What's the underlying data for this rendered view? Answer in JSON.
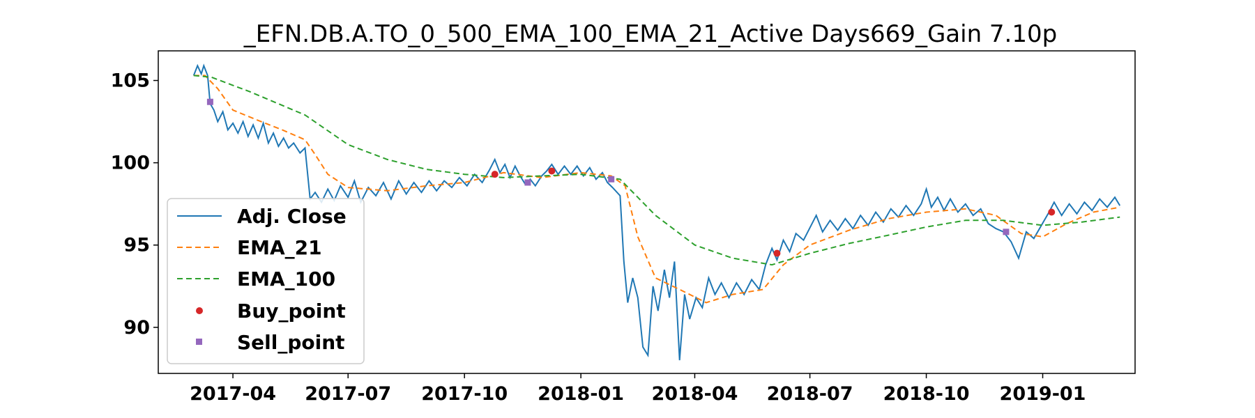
{
  "chart_data": {
    "type": "line",
    "title": "_EFN.DB.A.TO_0_500_EMA_100_EMA_21_Active Days669_Gain   7.10p",
    "xlabel": "",
    "ylabel": "",
    "xlim": [
      "2017-02-01",
      "2019-03-15"
    ],
    "ylim": [
      87.2,
      106.8
    ],
    "y_ticks": [
      90,
      95,
      100,
      105
    ],
    "x_ticks": [
      "2017-04",
      "2017-07",
      "2017-10",
      "2018-01",
      "2018-04",
      "2018-07",
      "2018-10",
      "2019-01"
    ],
    "grid": false,
    "legend_position": "lower-left",
    "series": [
      {
        "name": "Adj. Close",
        "color": "#1f77b4",
        "style": "solid",
        "points": [
          [
            "2017-03-01",
            105.3
          ],
          [
            "2017-03-04",
            105.9
          ],
          [
            "2017-03-07",
            105.4
          ],
          [
            "2017-03-09",
            105.9
          ],
          [
            "2017-03-12",
            105.3
          ],
          [
            "2017-03-14",
            103.6
          ],
          [
            "2017-03-17",
            103.2
          ],
          [
            "2017-03-20",
            102.5
          ],
          [
            "2017-03-24",
            103.1
          ],
          [
            "2017-03-28",
            102.0
          ],
          [
            "2017-04-01",
            102.4
          ],
          [
            "2017-04-05",
            101.8
          ],
          [
            "2017-04-09",
            102.5
          ],
          [
            "2017-04-13",
            101.6
          ],
          [
            "2017-04-17",
            102.3
          ],
          [
            "2017-04-21",
            101.5
          ],
          [
            "2017-04-25",
            102.4
          ],
          [
            "2017-04-29",
            101.2
          ],
          [
            "2017-05-03",
            101.8
          ],
          [
            "2017-05-07",
            101.0
          ],
          [
            "2017-05-11",
            101.5
          ],
          [
            "2017-05-15",
            100.9
          ],
          [
            "2017-05-19",
            101.2
          ],
          [
            "2017-05-24",
            100.6
          ],
          [
            "2017-05-28",
            100.9
          ],
          [
            "2017-06-01",
            97.8
          ],
          [
            "2017-06-05",
            98.2
          ],
          [
            "2017-06-10",
            97.6
          ],
          [
            "2017-06-15",
            98.4
          ],
          [
            "2017-06-20",
            97.7
          ],
          [
            "2017-06-25",
            98.6
          ],
          [
            "2017-07-01",
            97.9
          ],
          [
            "2017-07-06",
            98.9
          ],
          [
            "2017-07-11",
            97.6
          ],
          [
            "2017-07-17",
            98.5
          ],
          [
            "2017-07-23",
            98.0
          ],
          [
            "2017-07-29",
            98.8
          ],
          [
            "2017-08-04",
            97.8
          ],
          [
            "2017-08-10",
            98.9
          ],
          [
            "2017-08-16",
            98.1
          ],
          [
            "2017-08-22",
            98.8
          ],
          [
            "2017-08-28",
            98.2
          ],
          [
            "2017-09-03",
            98.9
          ],
          [
            "2017-09-09",
            98.3
          ],
          [
            "2017-09-15",
            98.9
          ],
          [
            "2017-09-21",
            98.5
          ],
          [
            "2017-09-27",
            99.1
          ],
          [
            "2017-10-03",
            98.6
          ],
          [
            "2017-10-09",
            99.3
          ],
          [
            "2017-10-15",
            98.8
          ],
          [
            "2017-10-21",
            99.6
          ],
          [
            "2017-10-25",
            100.2
          ],
          [
            "2017-10-29",
            99.4
          ],
          [
            "2017-11-02",
            99.9
          ],
          [
            "2017-11-06",
            99.1
          ],
          [
            "2017-11-10",
            99.8
          ],
          [
            "2017-11-14",
            99.2
          ],
          [
            "2017-11-18",
            98.7
          ],
          [
            "2017-11-22",
            99.0
          ],
          [
            "2017-11-26",
            98.6
          ],
          [
            "2017-12-01",
            99.2
          ],
          [
            "2017-12-05",
            99.5
          ],
          [
            "2017-12-09",
            99.9
          ],
          [
            "2017-12-14",
            99.3
          ],
          [
            "2017-12-19",
            99.8
          ],
          [
            "2017-12-24",
            99.3
          ],
          [
            "2017-12-29",
            99.8
          ],
          [
            "2018-01-03",
            99.2
          ],
          [
            "2018-01-08",
            99.7
          ],
          [
            "2018-01-13",
            99.0
          ],
          [
            "2018-01-18",
            99.4
          ],
          [
            "2018-01-22",
            98.8
          ],
          [
            "2018-01-26",
            98.5
          ],
          [
            "2018-02-01",
            98.0
          ],
          [
            "2018-02-04",
            94.0
          ],
          [
            "2018-02-07",
            91.5
          ],
          [
            "2018-02-11",
            93.0
          ],
          [
            "2018-02-15",
            91.8
          ],
          [
            "2018-02-19",
            88.8
          ],
          [
            "2018-02-23",
            88.3
          ],
          [
            "2018-02-27",
            92.5
          ],
          [
            "2018-03-03",
            91.0
          ],
          [
            "2018-03-08",
            93.5
          ],
          [
            "2018-03-12",
            91.8
          ],
          [
            "2018-03-16",
            94.0
          ],
          [
            "2018-03-20",
            88.0
          ],
          [
            "2018-03-24",
            92.0
          ],
          [
            "2018-03-28",
            90.5
          ],
          [
            "2018-04-02",
            91.8
          ],
          [
            "2018-04-07",
            91.2
          ],
          [
            "2018-04-12",
            93.0
          ],
          [
            "2018-04-17",
            92.0
          ],
          [
            "2018-04-22",
            92.7
          ],
          [
            "2018-04-28",
            91.8
          ],
          [
            "2018-05-04",
            92.7
          ],
          [
            "2018-05-10",
            92.0
          ],
          [
            "2018-05-16",
            92.9
          ],
          [
            "2018-05-22",
            92.3
          ],
          [
            "2018-05-27",
            93.8
          ],
          [
            "2018-06-01",
            94.8
          ],
          [
            "2018-06-05",
            94.1
          ],
          [
            "2018-06-10",
            95.3
          ],
          [
            "2018-06-15",
            94.6
          ],
          [
            "2018-06-20",
            95.7
          ],
          [
            "2018-06-26",
            95.3
          ],
          [
            "2018-07-02",
            96.2
          ],
          [
            "2018-07-06",
            96.8
          ],
          [
            "2018-07-11",
            95.8
          ],
          [
            "2018-07-17",
            96.5
          ],
          [
            "2018-07-23",
            95.9
          ],
          [
            "2018-07-29",
            96.6
          ],
          [
            "2018-08-04",
            96.0
          ],
          [
            "2018-08-10",
            96.8
          ],
          [
            "2018-08-16",
            96.2
          ],
          [
            "2018-08-22",
            97.0
          ],
          [
            "2018-08-28",
            96.4
          ],
          [
            "2018-09-03",
            97.2
          ],
          [
            "2018-09-09",
            96.7
          ],
          [
            "2018-09-15",
            97.4
          ],
          [
            "2018-09-21",
            96.8
          ],
          [
            "2018-09-27",
            97.5
          ],
          [
            "2018-10-01",
            98.4
          ],
          [
            "2018-10-05",
            97.3
          ],
          [
            "2018-10-10",
            97.9
          ],
          [
            "2018-10-15",
            97.1
          ],
          [
            "2018-10-20",
            97.8
          ],
          [
            "2018-10-26",
            97.0
          ],
          [
            "2018-11-01",
            97.5
          ],
          [
            "2018-11-07",
            96.8
          ],
          [
            "2018-11-13",
            97.2
          ],
          [
            "2018-11-19",
            96.3
          ],
          [
            "2018-11-25",
            96.0
          ],
          [
            "2018-12-01",
            95.8
          ],
          [
            "2018-12-07",
            95.2
          ],
          [
            "2018-12-13",
            94.2
          ],
          [
            "2018-12-19",
            95.8
          ],
          [
            "2018-12-25",
            95.4
          ],
          [
            "2018-12-31",
            96.2
          ],
          [
            "2019-01-06",
            97.0
          ],
          [
            "2019-01-10",
            97.6
          ],
          [
            "2019-01-16",
            96.8
          ],
          [
            "2019-01-22",
            97.5
          ],
          [
            "2019-01-28",
            96.9
          ],
          [
            "2019-02-03",
            97.6
          ],
          [
            "2019-02-09",
            97.1
          ],
          [
            "2019-02-15",
            97.8
          ],
          [
            "2019-02-21",
            97.3
          ],
          [
            "2019-02-27",
            97.9
          ],
          [
            "2019-03-03",
            97.4
          ]
        ]
      },
      {
        "name": "EMA_21",
        "color": "#ff7f0e",
        "style": "dashed",
        "points": [
          [
            "2017-03-01",
            105.3
          ],
          [
            "2017-03-10",
            105.3
          ],
          [
            "2017-03-20",
            104.5
          ],
          [
            "2017-04-01",
            103.2
          ],
          [
            "2017-04-20",
            102.6
          ],
          [
            "2017-05-10",
            102.0
          ],
          [
            "2017-05-28",
            101.4
          ],
          [
            "2017-06-05",
            100.5
          ],
          [
            "2017-06-15",
            99.3
          ],
          [
            "2017-07-01",
            98.5
          ],
          [
            "2017-08-01",
            98.3
          ],
          [
            "2017-09-01",
            98.6
          ],
          [
            "2017-10-01",
            98.8
          ],
          [
            "2017-11-01",
            99.4
          ],
          [
            "2017-12-01",
            99.1
          ],
          [
            "2018-01-01",
            99.4
          ],
          [
            "2018-01-25",
            99.2
          ],
          [
            "2018-02-05",
            98.6
          ],
          [
            "2018-02-15",
            95.5
          ],
          [
            "2018-03-01",
            93.0
          ],
          [
            "2018-03-20",
            92.3
          ],
          [
            "2018-04-10",
            91.5
          ],
          [
            "2018-05-01",
            92.0
          ],
          [
            "2018-05-25",
            92.3
          ],
          [
            "2018-06-10",
            93.8
          ],
          [
            "2018-07-01",
            95.0
          ],
          [
            "2018-08-01",
            95.9
          ],
          [
            "2018-09-01",
            96.6
          ],
          [
            "2018-10-01",
            97.0
          ],
          [
            "2018-11-01",
            97.2
          ],
          [
            "2018-11-25",
            96.8
          ],
          [
            "2018-12-15",
            95.7
          ],
          [
            "2019-01-01",
            95.5
          ],
          [
            "2019-01-20",
            96.3
          ],
          [
            "2019-02-10",
            97.0
          ],
          [
            "2019-03-03",
            97.3
          ]
        ]
      },
      {
        "name": "EMA_100",
        "color": "#2ca02c",
        "style": "dashed",
        "points": [
          [
            "2017-03-01",
            105.3
          ],
          [
            "2017-03-15",
            105.2
          ],
          [
            "2017-04-15",
            104.3
          ],
          [
            "2017-05-28",
            102.9
          ],
          [
            "2017-07-01",
            101.1
          ],
          [
            "2017-08-01",
            100.2
          ],
          [
            "2017-09-01",
            99.6
          ],
          [
            "2017-10-01",
            99.3
          ],
          [
            "2017-11-01",
            99.1
          ],
          [
            "2017-12-01",
            99.2
          ],
          [
            "2018-01-01",
            99.3
          ],
          [
            "2018-02-01",
            99.0
          ],
          [
            "2018-03-01",
            96.8
          ],
          [
            "2018-04-01",
            95.0
          ],
          [
            "2018-05-01",
            94.2
          ],
          [
            "2018-06-01",
            93.8
          ],
          [
            "2018-07-01",
            94.5
          ],
          [
            "2018-08-01",
            95.1
          ],
          [
            "2018-09-01",
            95.6
          ],
          [
            "2018-10-01",
            96.1
          ],
          [
            "2018-11-01",
            96.5
          ],
          [
            "2018-12-01",
            96.5
          ],
          [
            "2019-01-01",
            96.2
          ],
          [
            "2019-02-01",
            96.4
          ],
          [
            "2019-03-03",
            96.7
          ]
        ]
      }
    ],
    "buy_points": {
      "name": "Buy_point",
      "color": "#d62728",
      "marker": "circle",
      "points": [
        [
          "2017-10-25",
          99.3
        ],
        [
          "2017-12-09",
          99.5
        ],
        [
          "2018-06-05",
          94.5
        ],
        [
          "2019-01-08",
          97.0
        ]
      ]
    },
    "sell_points": {
      "name": "Sell_point",
      "color": "#9467bd",
      "marker": "square",
      "points": [
        [
          "2017-03-14",
          103.7
        ],
        [
          "2017-11-20",
          98.8
        ],
        [
          "2018-01-25",
          99.0
        ],
        [
          "2018-12-03",
          95.8
        ]
      ]
    }
  }
}
